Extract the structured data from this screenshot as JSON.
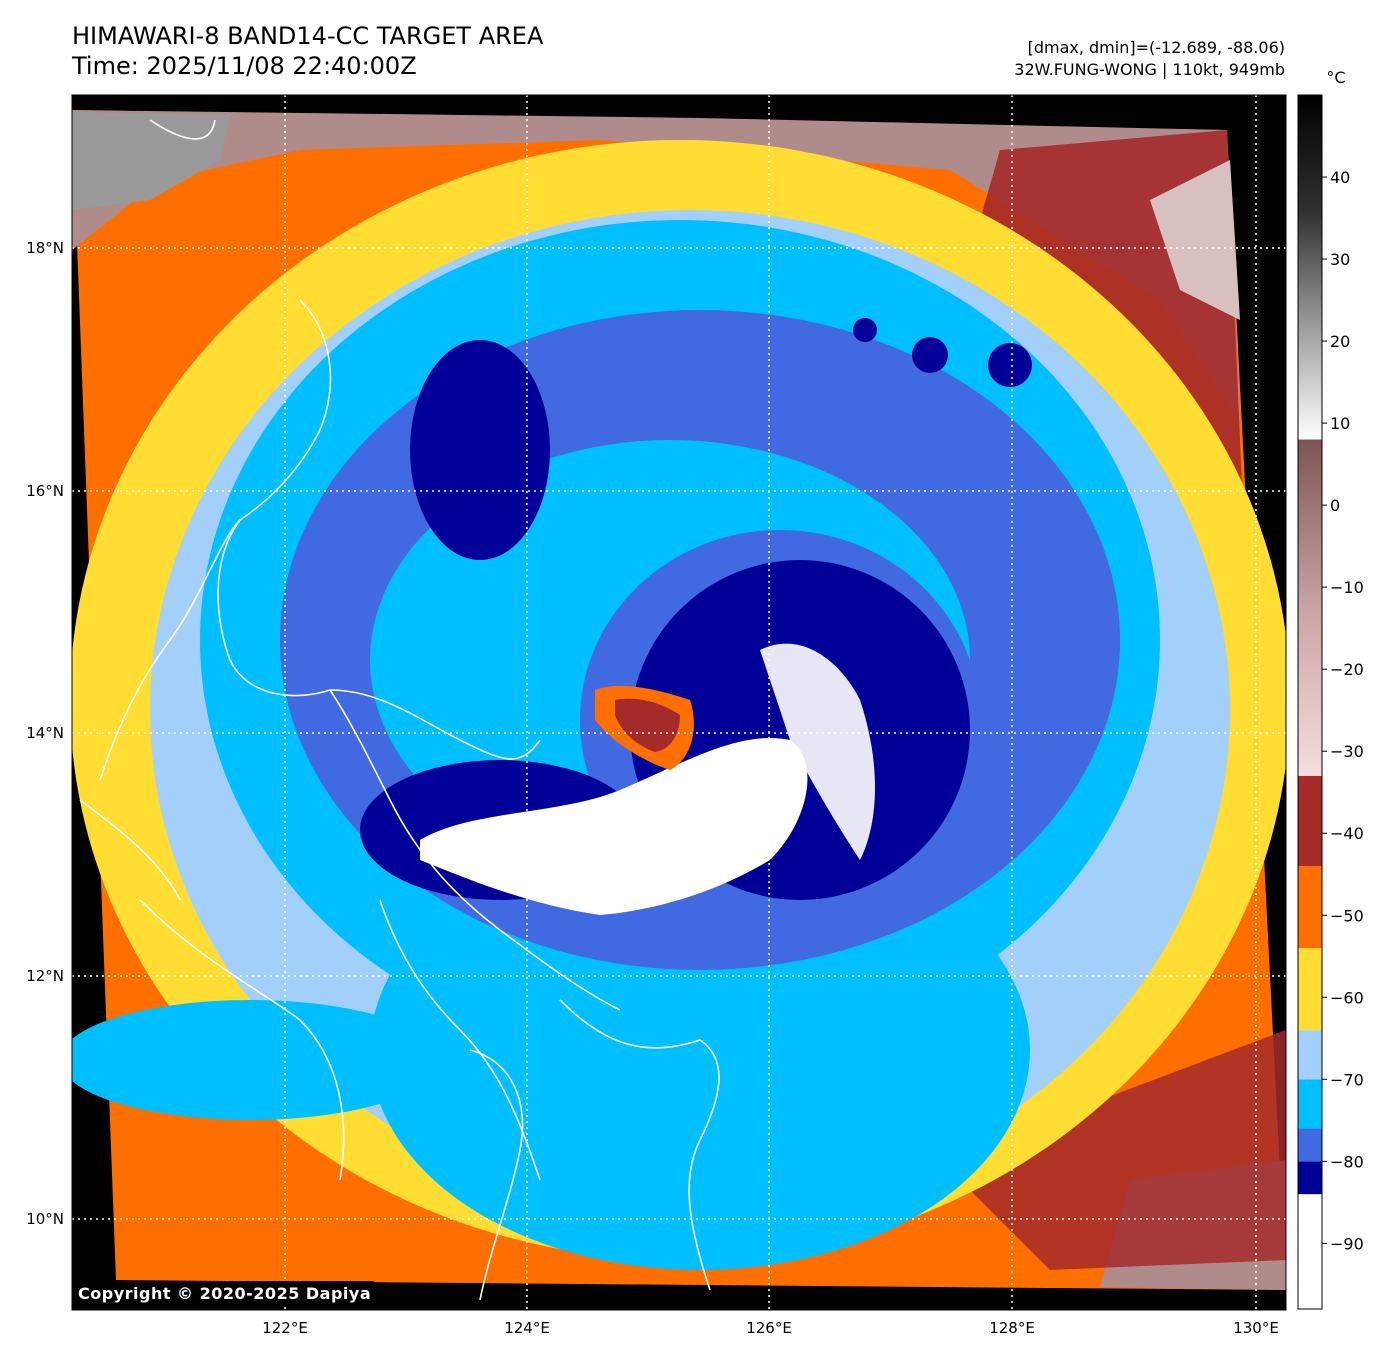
{
  "header": {
    "title_line1": "HIMAWARI-8 BAND14-CC TARGET AREA",
    "title_line2": "Time: 2025/11/08 22:40:00Z",
    "stats_line": "[dmax, dmin]=(-12.689, -88.06)",
    "storm_line": "32W.FUNG-WONG | 110kt, 949mb"
  },
  "map": {
    "lon_ticks": [
      "122°E",
      "124°E",
      "126°E",
      "128°E",
      "130°E"
    ],
    "lat_ticks": [
      "18°N",
      "16°N",
      "14°N",
      "12°N",
      "10°N"
    ],
    "grid": true,
    "coastlines_color": "#ffffff"
  },
  "colorbar": {
    "unit": "°C",
    "min": -98,
    "max": 50,
    "tick_labels": [
      "40",
      "30",
      "20",
      "10",
      "0",
      "−10",
      "−20",
      "−30",
      "−40",
      "−50",
      "−60",
      "−70",
      "−80",
      "−90"
    ],
    "bands": [
      {
        "from": -98,
        "to": -84,
        "color": "#ffffff"
      },
      {
        "from": -84,
        "to": -80,
        "color": "#000099"
      },
      {
        "from": -80,
        "to": -76,
        "color": "#4169e1"
      },
      {
        "from": -76,
        "to": -70,
        "color": "#00bfff"
      },
      {
        "from": -70,
        "to": -64,
        "color": "#a3d0fa"
      },
      {
        "from": -64,
        "to": -54,
        "color": "#ffdd33"
      },
      {
        "from": -54,
        "to": -44,
        "color": "#ff6f00"
      },
      {
        "from": -44,
        "to": -33,
        "color": "#a52a2a"
      }
    ],
    "gradient_warm": [
      "#f5dede",
      "#c9a4a4",
      "#7e5454"
    ],
    "gradient_hot": [
      "#ffffff",
      "#9a9a9a",
      "#303030",
      "#000000"
    ]
  },
  "footer": {
    "copyright": "Copyright © 2020-2025 Dapiya"
  }
}
